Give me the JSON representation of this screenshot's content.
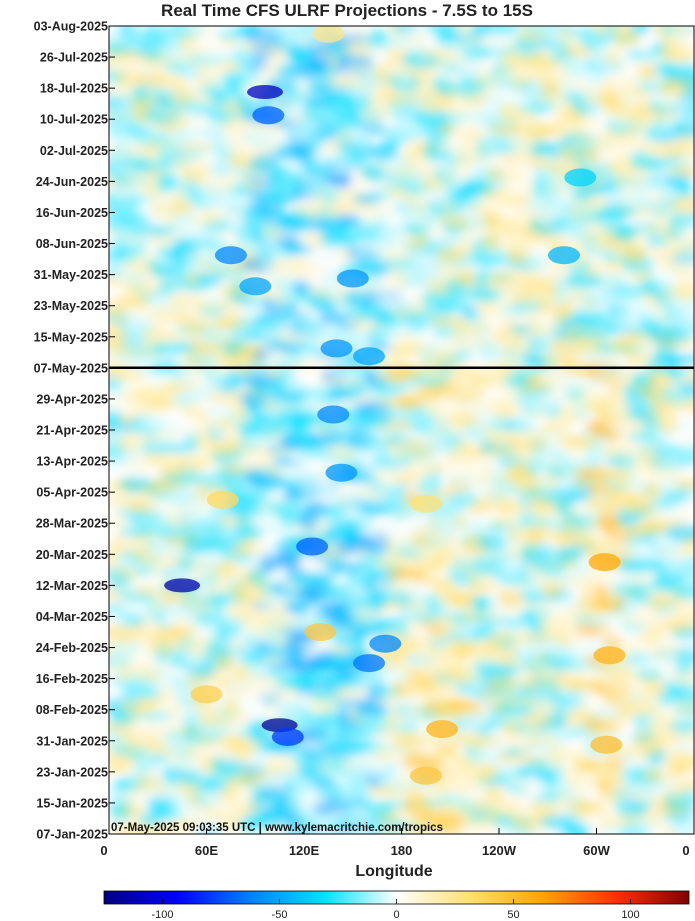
{
  "chart_data": {
    "type": "heatmap",
    "title": "Real Time CFS ULRF Projections - 7.5S to 15S",
    "xlabel": "Longitude",
    "ylabel": "",
    "x_ticks": [
      "0",
      "60E",
      "120E",
      "180",
      "120W",
      "60W",
      "0"
    ],
    "x_tick_values": [
      0,
      60,
      120,
      180,
      240,
      300,
      360
    ],
    "xlim": [
      0,
      360
    ],
    "y_ticks": [
      "03-Aug-2025",
      "26-Jul-2025",
      "18-Jul-2025",
      "10-Jul-2025",
      "02-Jul-2025",
      "24-Jun-2025",
      "16-Jun-2025",
      "08-Jun-2025",
      "31-May-2025",
      "23-May-2025",
      "15-May-2025",
      "07-May-2025",
      "29-Apr-2025",
      "21-Apr-2025",
      "13-Apr-2025",
      "05-Apr-2025",
      "28-Mar-2025",
      "20-Mar-2025",
      "12-Mar-2025",
      "04-Mar-2025",
      "24-Feb-2025",
      "16-Feb-2025",
      "08-Feb-2025",
      "31-Jan-2025",
      "23-Jan-2025",
      "15-Jan-2025",
      "07-Jan-2025"
    ],
    "ylim": [
      "07-Jan-2025",
      "03-Aug-2025"
    ],
    "current_date_line": "07-May-2025",
    "colorbar": {
      "ticks": [
        "-100",
        "-50",
        "0",
        "50",
        "100"
      ],
      "tick_values": [
        -100,
        -50,
        0,
        50,
        100
      ],
      "range": [
        -125,
        125
      ],
      "colors": [
        "#00007f",
        "#0000ff",
        "#0080ff",
        "#00e0ff",
        "#ffffff",
        "#ffe070",
        "#ffa500",
        "#ff3000",
        "#7f0000"
      ]
    },
    "anomalies": [
      {
        "lon": 96,
        "date": "17-Jul-2025",
        "value": -110
      },
      {
        "lon": 98,
        "date": "11-Jul-2025",
        "value": -70
      },
      {
        "lon": 75,
        "date": "05-Jun-2025",
        "value": -60
      },
      {
        "lon": 90,
        "date": "28-May-2025",
        "value": -50
      },
      {
        "lon": 150,
        "date": "30-May-2025",
        "value": -55
      },
      {
        "lon": 140,
        "date": "12-May-2025",
        "value": -55
      },
      {
        "lon": 160,
        "date": "10-May-2025",
        "value": -50
      },
      {
        "lon": 138,
        "date": "25-Apr-2025",
        "value": -60
      },
      {
        "lon": 143,
        "date": "10-Apr-2025",
        "value": -55
      },
      {
        "lon": 125,
        "date": "22-Mar-2025",
        "value": -70
      },
      {
        "lon": 45,
        "date": "12-Mar-2025",
        "value": -115
      },
      {
        "lon": 160,
        "date": "20-Feb-2025",
        "value": -65
      },
      {
        "lon": 170,
        "date": "25-Feb-2025",
        "value": -60
      },
      {
        "lon": 105,
        "date": "04-Feb-2025",
        "value": -120
      },
      {
        "lon": 110,
        "date": "01-Feb-2025",
        "value": -80
      },
      {
        "lon": 195,
        "date": "02-Apr-2025",
        "value": 30
      },
      {
        "lon": 70,
        "date": "03-Apr-2025",
        "value": 35
      },
      {
        "lon": 130,
        "date": "28-Feb-2025",
        "value": 45
      },
      {
        "lon": 205,
        "date": "03-Feb-2025",
        "value": 55
      },
      {
        "lon": 195,
        "date": "22-Jan-2025",
        "value": 45
      },
      {
        "lon": 305,
        "date": "18-Mar-2025",
        "value": 60
      },
      {
        "lon": 308,
        "date": "22-Feb-2025",
        "value": 55
      },
      {
        "lon": 306,
        "date": "30-Jan-2025",
        "value": 50
      },
      {
        "lon": 60,
        "date": "12-Feb-2025",
        "value": 40
      },
      {
        "lon": 135,
        "date": "01-Aug-2025",
        "value": 25
      },
      {
        "lon": 290,
        "date": "25-Jun-2025",
        "value": -35
      },
      {
        "lon": 280,
        "date": "05-Jun-2025",
        "value": -45
      }
    ]
  },
  "credit": "07-May-2025 09:03:35 UTC | www.kylemacritchie.com/tropics"
}
